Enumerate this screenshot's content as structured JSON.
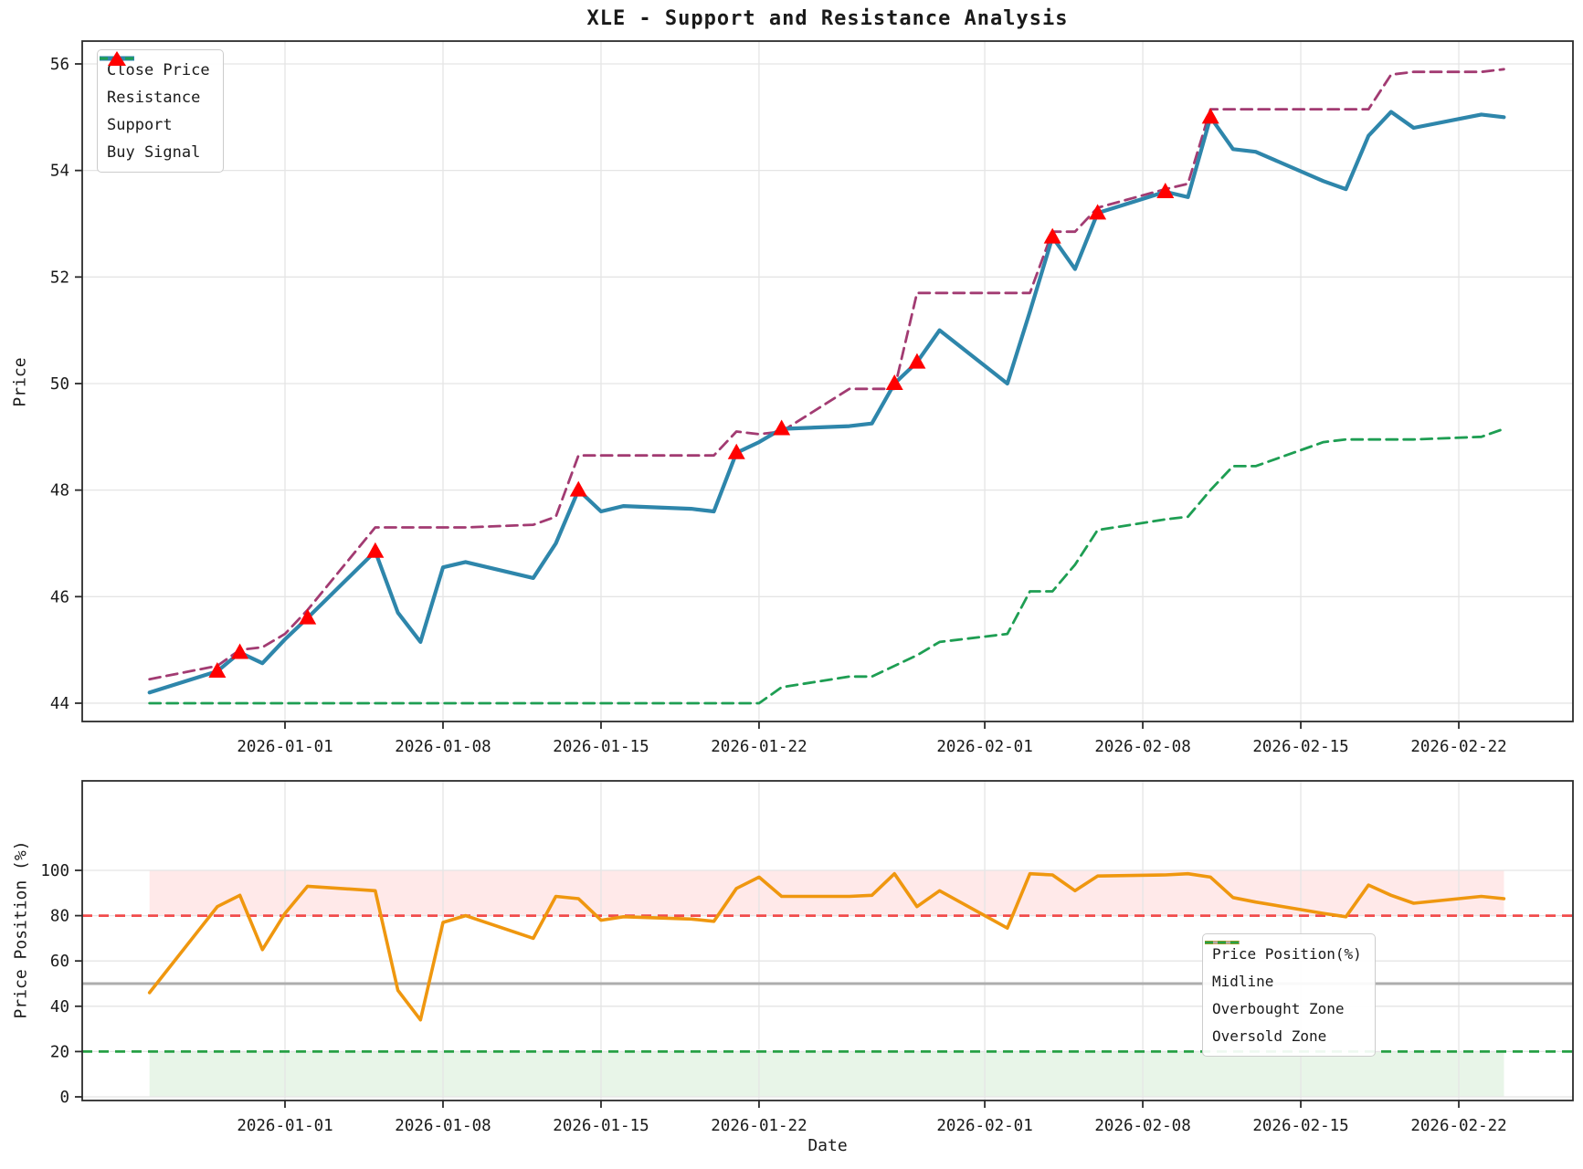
{
  "title": "XLE - Support and Resistance Analysis",
  "colors": {
    "close": "#2E86AB",
    "resistance": "#A23B72",
    "support": "#1E9E53",
    "buy": "#FF0000",
    "position": "#EF970F",
    "midline": "#ADADAD",
    "overbought": "#F14C4C",
    "oversold": "#27A045",
    "overbought_fill": "rgba(255,82,82,0.13)",
    "oversold_fill": "rgba(76,175,80,0.13)",
    "grid": "#E5E5E5",
    "spine": "#2B2B2B",
    "text": "#1a1a1a"
  },
  "price_panel": {
    "ylabel": "Price",
    "yticks": [
      44,
      46,
      48,
      50,
      52,
      54,
      56
    ],
    "legend": [
      {
        "label": "Close Price",
        "style": "solid",
        "color_key": "close"
      },
      {
        "label": "Resistance",
        "style": "dashed",
        "color_key": "resistance"
      },
      {
        "label": "Support",
        "style": "dashed",
        "color_key": "support"
      },
      {
        "label": "Buy Signal",
        "style": "triangle",
        "color_key": "buy"
      }
    ]
  },
  "position_panel": {
    "ylabel": "Price Position (%)",
    "xlabel": "Date",
    "yticks": [
      0,
      20,
      40,
      60,
      80,
      100
    ],
    "overbought_level": 80,
    "oversold_level": 20,
    "midline_level": 50,
    "legend": [
      {
        "label": "Price Position(%)",
        "style": "solid",
        "color_key": "position"
      },
      {
        "label": "Midline",
        "style": "solid",
        "color_key": "midline"
      },
      {
        "label": "Overbought Zone",
        "style": "dashed",
        "color_key": "overbought"
      },
      {
        "label": "Oversold Zone",
        "style": "dashed",
        "color_key": "oversold"
      }
    ]
  },
  "x_tick_labels": [
    "2026-01-01",
    "2026-01-08",
    "2026-01-15",
    "2026-01-22",
    "2026-02-01",
    "2026-02-08",
    "2026-02-15",
    "2026-02-22"
  ],
  "chart_data": [
    {
      "type": "line",
      "title": "XLE - Support and Resistance Analysis",
      "xlabel": "",
      "ylabel": "Price",
      "ylim": [
        43.4,
        56.5
      ],
      "grid": true,
      "legend_position": "upper left",
      "x": [
        "2025-12-26",
        "2025-12-29",
        "2025-12-30",
        "2025-12-31",
        "2026-01-01",
        "2026-01-02",
        "2026-01-05",
        "2026-01-06",
        "2026-01-07",
        "2026-01-08",
        "2026-01-09",
        "2026-01-12",
        "2026-01-13",
        "2026-01-14",
        "2026-01-15",
        "2026-01-16",
        "2026-01-19",
        "2026-01-20",
        "2026-01-21",
        "2026-01-22",
        "2026-01-23",
        "2026-01-26",
        "2026-01-27",
        "2026-01-28",
        "2026-01-29",
        "2026-01-30",
        "2026-02-02",
        "2026-02-03",
        "2026-02-04",
        "2026-02-05",
        "2026-02-06",
        "2026-02-09",
        "2026-02-10",
        "2026-02-11",
        "2026-02-12",
        "2026-02-13",
        "2026-02-16",
        "2026-02-17",
        "2026-02-18",
        "2026-02-19",
        "2026-02-20",
        "2026-02-23",
        "2026-02-24"
      ],
      "series": [
        {
          "name": "Close Price",
          "values": [
            44.2,
            44.6,
            44.95,
            44.75,
            45.2,
            45.6,
            46.85,
            45.7,
            45.15,
            46.55,
            46.65,
            46.35,
            47.0,
            48.0,
            47.6,
            47.7,
            47.65,
            47.6,
            48.7,
            48.9,
            49.15,
            49.2,
            49.25,
            50.0,
            50.4,
            51.0,
            50.0,
            51.35,
            52.75,
            52.15,
            53.2,
            53.6,
            53.5,
            55.0,
            54.4,
            54.35,
            53.8,
            53.65,
            54.65,
            55.1,
            54.8,
            55.05,
            55.0
          ]
        },
        {
          "name": "Resistance",
          "values": [
            44.45,
            44.7,
            45.0,
            45.05,
            45.3,
            45.75,
            47.3,
            47.3,
            47.3,
            47.3,
            47.3,
            47.35,
            47.5,
            48.65,
            48.65,
            48.65,
            48.65,
            48.65,
            49.1,
            49.05,
            49.1,
            49.9,
            49.9,
            49.9,
            51.7,
            51.7,
            51.7,
            51.7,
            52.85,
            52.85,
            53.3,
            53.65,
            53.75,
            55.15,
            55.15,
            55.15,
            55.15,
            55.15,
            55.15,
            55.8,
            55.85,
            55.85,
            55.9
          ]
        },
        {
          "name": "Support",
          "values": [
            44.0,
            44.0,
            44.0,
            44.0,
            44.0,
            44.0,
            44.0,
            44.0,
            44.0,
            44.0,
            44.0,
            44.0,
            44.0,
            44.0,
            44.0,
            44.0,
            44.0,
            44.0,
            44.0,
            44.0,
            44.3,
            44.5,
            44.5,
            44.7,
            44.9,
            45.15,
            45.3,
            46.1,
            46.1,
            46.6,
            47.25,
            47.45,
            47.5,
            48.0,
            48.45,
            48.45,
            48.9,
            48.95,
            48.95,
            48.95,
            48.95,
            49.0,
            49.15
          ]
        }
      ],
      "buy_signals": [
        {
          "date": "2025-12-29",
          "price": 44.6
        },
        {
          "date": "2025-12-30",
          "price": 44.95
        },
        {
          "date": "2026-01-02",
          "price": 45.6
        },
        {
          "date": "2026-01-05",
          "price": 46.85
        },
        {
          "date": "2026-01-14",
          "price": 48.0
        },
        {
          "date": "2026-01-21",
          "price": 48.7
        },
        {
          "date": "2026-01-23",
          "price": 49.15
        },
        {
          "date": "2026-01-28",
          "price": 50.0
        },
        {
          "date": "2026-01-29",
          "price": 50.4
        },
        {
          "date": "2026-02-04",
          "price": 52.75
        },
        {
          "date": "2026-02-06",
          "price": 53.2
        },
        {
          "date": "2026-02-09",
          "price": 53.6
        },
        {
          "date": "2026-02-11",
          "price": 55.0
        }
      ]
    },
    {
      "type": "line",
      "title": "",
      "xlabel": "Date",
      "ylabel": "Price Position (%)",
      "ylim": [
        0,
        100
      ],
      "grid": true,
      "legend_position": "center right",
      "x": [
        "2025-12-26",
        "2025-12-29",
        "2025-12-30",
        "2025-12-31",
        "2026-01-01",
        "2026-01-02",
        "2026-01-05",
        "2026-01-06",
        "2026-01-07",
        "2026-01-08",
        "2026-01-09",
        "2026-01-12",
        "2026-01-13",
        "2026-01-14",
        "2026-01-15",
        "2026-01-16",
        "2026-01-19",
        "2026-01-20",
        "2026-01-21",
        "2026-01-22",
        "2026-01-23",
        "2026-01-26",
        "2026-01-27",
        "2026-01-28",
        "2026-01-29",
        "2026-01-30",
        "2026-02-02",
        "2026-02-03",
        "2026-02-04",
        "2026-02-05",
        "2026-02-06",
        "2026-02-09",
        "2026-02-10",
        "2026-02-11",
        "2026-02-12",
        "2026-02-13",
        "2026-02-16",
        "2026-02-17",
        "2026-02-18",
        "2026-02-19",
        "2026-02-20",
        "2026-02-23",
        "2026-02-24"
      ],
      "series": [
        {
          "name": "Price Position(%)",
          "values": [
            46,
            84,
            89,
            65,
            81,
            93,
            91,
            47,
            34,
            77,
            80,
            70,
            88.5,
            87.5,
            78,
            79.5,
            78.5,
            77.5,
            92,
            97,
            88.5,
            88.5,
            89,
            98.5,
            84,
            91,
            74.5,
            98.5,
            98,
            91,
            97.5,
            98,
            98.5,
            97,
            88,
            86,
            81,
            79.5,
            93.5,
            89,
            85.5,
            88.5,
            87.5
          ]
        }
      ],
      "reference_lines": [
        {
          "name": "Midline",
          "value": 50
        },
        {
          "name": "Overbought Zone",
          "value": 80
        },
        {
          "name": "Oversold Zone",
          "value": 20
        }
      ],
      "shaded_bands": [
        {
          "name": "overbought-band",
          "from": 80,
          "to": 100
        },
        {
          "name": "oversold-band",
          "from": 0,
          "to": 20
        }
      ]
    }
  ]
}
